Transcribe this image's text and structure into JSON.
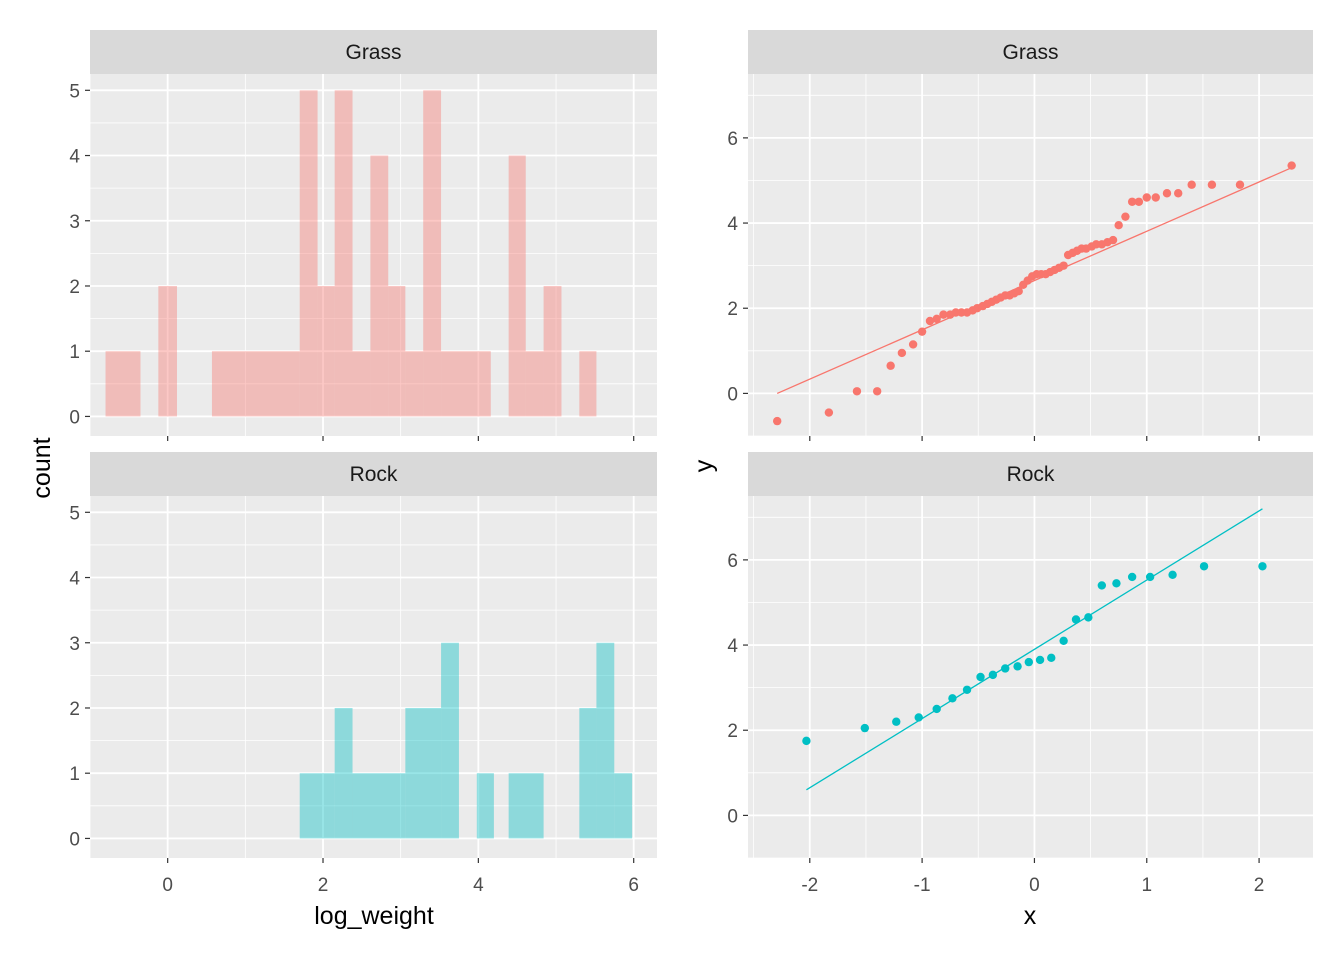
{
  "colors": {
    "grass": "#F8766D",
    "rock": "#00BFC4",
    "panel_bg": "#EBEBEB",
    "strip_bg": "#D9D9D9",
    "grid": "#FFFFFF"
  },
  "labels": {
    "hist_xlabel": "log_weight",
    "hist_ylabel": "count",
    "qq_xlabel": "x",
    "qq_ylabel": "y"
  },
  "chart_data": [
    {
      "type": "bar",
      "facet": "Grass",
      "xlabel": "log_weight",
      "ylabel": "count",
      "xlim": [
        -1.0,
        6.3
      ],
      "ylim": [
        -0.3,
        5.25
      ],
      "xticks": [
        0,
        2,
        4,
        6
      ],
      "yticks": [
        0,
        1,
        2,
        3,
        4,
        5
      ],
      "grid": true,
      "bins": [
        {
          "x0": -0.8,
          "x1": -0.35,
          "count": 1
        },
        {
          "x0": -0.12,
          "x1": 0.12,
          "count": 2
        },
        {
          "x0": 0.57,
          "x1": 1.7,
          "count": 1
        },
        {
          "x0": 1.7,
          "x1": 1.93,
          "count": 5
        },
        {
          "x0": 1.93,
          "x1": 2.15,
          "count": 2
        },
        {
          "x0": 2.15,
          "x1": 2.38,
          "count": 5
        },
        {
          "x0": 2.38,
          "x1": 2.61,
          "count": 1
        },
        {
          "x0": 2.61,
          "x1": 2.84,
          "count": 4
        },
        {
          "x0": 2.84,
          "x1": 3.06,
          "count": 2
        },
        {
          "x0": 3.06,
          "x1": 3.29,
          "count": 1
        },
        {
          "x0": 3.29,
          "x1": 3.52,
          "count": 5
        },
        {
          "x0": 3.52,
          "x1": 4.16,
          "count": 1
        },
        {
          "x0": 4.39,
          "x1": 4.61,
          "count": 4
        },
        {
          "x0": 4.61,
          "x1": 4.84,
          "count": 1
        },
        {
          "x0": 4.84,
          "x1": 5.07,
          "count": 2
        },
        {
          "x0": 5.3,
          "x1": 5.52,
          "count": 1
        }
      ]
    },
    {
      "type": "bar",
      "facet": "Rock",
      "xlabel": "log_weight",
      "ylabel": "count",
      "xlim": [
        -1.0,
        6.3
      ],
      "ylim": [
        -0.3,
        5.25
      ],
      "xticks": [
        0,
        2,
        4,
        6
      ],
      "yticks": [
        0,
        1,
        2,
        3,
        4,
        5
      ],
      "grid": true,
      "bins": [
        {
          "x0": 1.7,
          "x1": 2.15,
          "count": 1
        },
        {
          "x0": 2.15,
          "x1": 2.38,
          "count": 2
        },
        {
          "x0": 2.38,
          "x1": 3.06,
          "count": 1
        },
        {
          "x0": 3.06,
          "x1": 3.52,
          "count": 2
        },
        {
          "x0": 3.52,
          "x1": 3.75,
          "count": 3
        },
        {
          "x0": 3.98,
          "x1": 4.2,
          "count": 1
        },
        {
          "x0": 4.39,
          "x1": 4.84,
          "count": 1
        },
        {
          "x0": 5.3,
          "x1": 5.52,
          "count": 2
        },
        {
          "x0": 5.52,
          "x1": 5.75,
          "count": 3
        },
        {
          "x0": 5.75,
          "x1": 5.98,
          "count": 1
        }
      ]
    },
    {
      "type": "scatter",
      "facet": "Grass",
      "xlabel": "x",
      "ylabel": "y",
      "xlim": [
        -2.55,
        2.48
      ],
      "ylim": [
        -1.0,
        7.5
      ],
      "xticks": [
        -2,
        -1,
        0,
        1,
        2
      ],
      "yticks": [
        0,
        2,
        4,
        6
      ],
      "grid": true,
      "points": [
        [
          -2.29,
          -0.65
        ],
        [
          -1.83,
          -0.45
        ],
        [
          -1.58,
          0.05
        ],
        [
          -1.4,
          0.05
        ],
        [
          -1.28,
          0.65
        ],
        [
          -1.18,
          0.95
        ],
        [
          -1.08,
          1.15
        ],
        [
          -1.0,
          1.45
        ],
        [
          -0.93,
          1.7
        ],
        [
          -0.87,
          1.75
        ],
        [
          -0.81,
          1.85
        ],
        [
          -0.75,
          1.85
        ],
        [
          -0.7,
          1.9
        ],
        [
          -0.65,
          1.9
        ],
        [
          -0.6,
          1.9
        ],
        [
          -0.55,
          1.95
        ],
        [
          -0.51,
          2.0
        ],
        [
          -0.46,
          2.05
        ],
        [
          -0.42,
          2.1
        ],
        [
          -0.38,
          2.15
        ],
        [
          -0.34,
          2.2
        ],
        [
          -0.3,
          2.25
        ],
        [
          -0.26,
          2.3
        ],
        [
          -0.22,
          2.3
        ],
        [
          -0.18,
          2.35
        ],
        [
          -0.14,
          2.4
        ],
        [
          -0.1,
          2.55
        ],
        [
          -0.06,
          2.65
        ],
        [
          -0.02,
          2.75
        ],
        [
          0.02,
          2.8
        ],
        [
          0.06,
          2.8
        ],
        [
          0.1,
          2.8
        ],
        [
          0.14,
          2.85
        ],
        [
          0.18,
          2.9
        ],
        [
          0.22,
          2.95
        ],
        [
          0.26,
          3.0
        ],
        [
          0.3,
          3.25
        ],
        [
          0.34,
          3.3
        ],
        [
          0.38,
          3.35
        ],
        [
          0.42,
          3.4
        ],
        [
          0.46,
          3.4
        ],
        [
          0.51,
          3.45
        ],
        [
          0.55,
          3.5
        ],
        [
          0.6,
          3.5
        ],
        [
          0.65,
          3.55
        ],
        [
          0.7,
          3.6
        ],
        [
          0.75,
          3.95
        ],
        [
          0.81,
          4.15
        ],
        [
          0.87,
          4.5
        ],
        [
          0.93,
          4.5
        ],
        [
          1.0,
          4.6
        ],
        [
          1.08,
          4.6
        ],
        [
          1.18,
          4.7
        ],
        [
          1.28,
          4.7
        ],
        [
          1.4,
          4.9
        ],
        [
          1.58,
          4.9
        ],
        [
          1.83,
          4.9
        ],
        [
          2.29,
          5.35
        ]
      ],
      "fit_line": [
        [
          -2.29,
          0.0
        ],
        [
          2.29,
          5.3
        ]
      ]
    },
    {
      "type": "scatter",
      "facet": "Rock",
      "xlabel": "x",
      "ylabel": "y",
      "xlim": [
        -2.55,
        2.48
      ],
      "ylim": [
        -1.0,
        7.5
      ],
      "xticks": [
        -2,
        -1,
        0,
        1,
        2
      ],
      "yticks": [
        0,
        2,
        4,
        6
      ],
      "grid": true,
      "points": [
        [
          -2.03,
          1.75
        ],
        [
          -1.51,
          2.05
        ],
        [
          -1.23,
          2.2
        ],
        [
          -1.03,
          2.3
        ],
        [
          -0.87,
          2.5
        ],
        [
          -0.73,
          2.75
        ],
        [
          -0.6,
          2.95
        ],
        [
          -0.48,
          3.25
        ],
        [
          -0.37,
          3.3
        ],
        [
          -0.26,
          3.45
        ],
        [
          -0.15,
          3.5
        ],
        [
          -0.05,
          3.6
        ],
        [
          0.05,
          3.65
        ],
        [
          0.15,
          3.7
        ],
        [
          0.26,
          4.1
        ],
        [
          0.37,
          4.6
        ],
        [
          0.48,
          4.65
        ],
        [
          0.6,
          5.4
        ],
        [
          0.73,
          5.45
        ],
        [
          0.87,
          5.6
        ],
        [
          1.03,
          5.6
        ],
        [
          1.23,
          5.65
        ],
        [
          1.51,
          5.85
        ],
        [
          2.03,
          5.85
        ]
      ],
      "fit_line": [
        [
          -2.03,
          0.6
        ],
        [
          2.03,
          7.2
        ]
      ]
    }
  ]
}
